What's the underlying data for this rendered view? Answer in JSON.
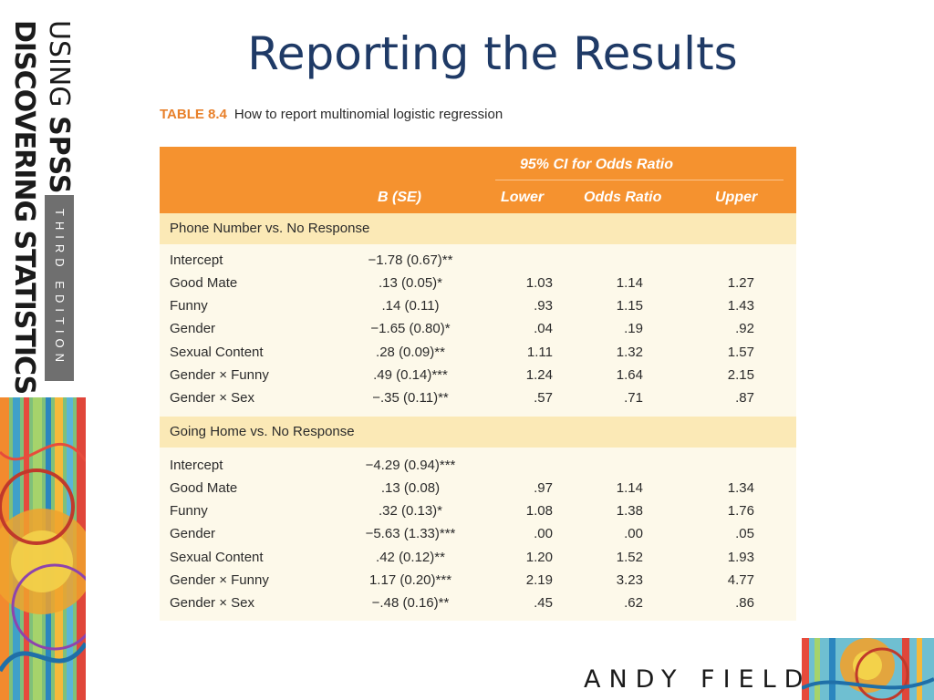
{
  "book": {
    "line1": "DISCOVERING STATISTICS",
    "line2_prefix": "USING ",
    "line2_strong": "SPSS",
    "edition": "THIRD EDITION",
    "author": "ANDY FIELD"
  },
  "slide": {
    "title": "Reporting the Results"
  },
  "table": {
    "caption_label": "TABLE 8.4",
    "caption_text": "How to report multinomial logistic regression",
    "ci_header": "95% CI for Odds Ratio",
    "columns": [
      "B (SE)",
      "Lower",
      "Odds Ratio",
      "Upper"
    ],
    "sections": [
      {
        "title": "Phone Number vs. No Response",
        "rows": [
          {
            "label": "Intercept",
            "b": "−1.78 (0.67)**",
            "lower": "",
            "odds": "",
            "upper": ""
          },
          {
            "label": "Good Mate",
            "b": ".13 (0.05)*",
            "lower": "1.03",
            "odds": "1.14",
            "upper": "1.27"
          },
          {
            "label": "Funny",
            "b": ".14 (0.11)",
            "lower": ".93",
            "odds": "1.15",
            "upper": "1.43"
          },
          {
            "label": "Gender",
            "b": "−1.65 (0.80)*",
            "lower": ".04",
            "odds": ".19",
            "upper": ".92"
          },
          {
            "label": "Sexual Content",
            "b": ".28 (0.09)**",
            "lower": "1.11",
            "odds": "1.32",
            "upper": "1.57"
          },
          {
            "label": "Gender × Funny",
            "b": ".49 (0.14)***",
            "lower": "1.24",
            "odds": "1.64",
            "upper": "2.15"
          },
          {
            "label": "Gender × Sex",
            "b": "−.35 (0.11)**",
            "lower": ".57",
            "odds": ".71",
            "upper": ".87"
          }
        ]
      },
      {
        "title": "Going Home vs. No Response",
        "rows": [
          {
            "label": "Intercept",
            "b": "−4.29 (0.94)***",
            "lower": "",
            "odds": "",
            "upper": ""
          },
          {
            "label": "Good Mate",
            "b": ".13 (0.08)",
            "lower": ".97",
            "odds": "1.14",
            "upper": "1.34"
          },
          {
            "label": "Funny",
            "b": ".32 (0.13)*",
            "lower": "1.08",
            "odds": "1.38",
            "upper": "1.76"
          },
          {
            "label": "Gender",
            "b": "−5.63 (1.33)***",
            "lower": ".00",
            "odds": ".00",
            "upper": ".05"
          },
          {
            "label": "Sexual Content",
            "b": ".42 (0.12)**",
            "lower": "1.20",
            "odds": "1.52",
            "upper": "1.93"
          },
          {
            "label": "Gender × Funny",
            "b": "1.17 (0.20)***",
            "lower": "2.19",
            "odds": "3.23",
            "upper": "4.77"
          },
          {
            "label": "Gender × Sex",
            "b": "−.48 (0.16)**",
            "lower": ".45",
            "odds": ".62",
            "upper": ".86"
          }
        ]
      }
    ]
  },
  "colors": {
    "title": "#1f3a66",
    "header_bg": "#f5922f",
    "section_bg": "#fbe9b6",
    "table_bg": "#fdf9ea",
    "caption_label": "#e8802a"
  }
}
